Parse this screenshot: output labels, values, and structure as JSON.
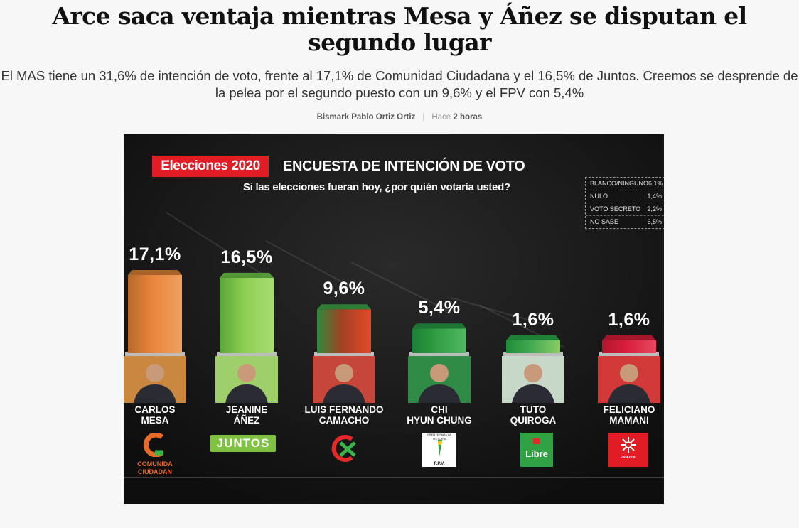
{
  "article": {
    "headline": "Arce saca ventaja mientras Mesa y Áñez se disputan el segundo lugar",
    "lede": "El MAS tiene un 31,6% de intención de voto, frente al 17,1% de Comunidad Ciudadana y el 16,5% de Juntos. Creemos se desprende de la pelea por el segundo puesto con un 9,6% y el FPV con 5,4%",
    "author": "Bismark Pablo Ortiz Ortiz",
    "time_prefix": "Hace",
    "time": "2 horas"
  },
  "chart_data": {
    "type": "bar",
    "tag": "Elecciones 2020",
    "title": "ENCUESTA DE INTENCIÓN DE VOTO",
    "subtitle": "Si las elecciones fueran hoy, ¿por quién votaría usted?",
    "categories": [
      "CARLOS MESA",
      "JEANINE ÁÑEZ",
      "LUIS FERNANDO CAMACHO",
      "CHI HYUN CHUNG",
      "TUTO QUIROGA",
      "FELICIANO MAMANI"
    ],
    "name_lines": [
      [
        "CARLOS",
        "MESA"
      ],
      [
        "JEANINE",
        "ÁÑEZ"
      ],
      [
        "LUIS FERNANDO",
        "CAMACHO"
      ],
      [
        "CHI",
        "HYUN CHUNG"
      ],
      [
        "TUTO",
        "QUIROGA"
      ],
      [
        "FELICIANO",
        "MAMANI"
      ]
    ],
    "values": [
      17.1,
      16.5,
      9.6,
      5.4,
      1.6,
      1.6
    ],
    "value_labels": [
      "17,1%",
      "16,5%",
      "9,6%",
      "5,4%",
      "1,6%",
      "1,6%"
    ],
    "bar_colors": [
      [
        "#b66a2a",
        "#e8843c",
        "#f0a060"
      ],
      [
        "#5aa53a",
        "#8ccf50",
        "#a9dc74"
      ],
      [
        "#2f8a3a",
        "#a04224",
        "#e54a28"
      ],
      [
        "#1d7f35",
        "#2f9e44",
        "#52b861"
      ],
      [
        "#1f8c38",
        "#42aa50",
        "#8acc66"
      ],
      [
        "#b5152e",
        "#d81f3c",
        "#e8485f"
      ]
    ],
    "party_logos": [
      {
        "name": "COMUNIDA CIUDADAN",
        "icon": "comunidad-ciudadana-logo"
      },
      {
        "name": "JUNTOS",
        "icon": "juntos-logo"
      },
      {
        "name": "CREEMOS",
        "icon": "creemos-logo"
      },
      {
        "name": "FPV",
        "icon": "fpv-logo",
        "small_text": "FRENTE PARA LA VICTORIA",
        "abbr": "F.P.V."
      },
      {
        "name": "Libre",
        "icon": "libre-logo"
      },
      {
        "name": "PAN-BOL",
        "icon": "pan-bol-logo"
      }
    ],
    "others": [
      {
        "label": "BLANCO/NINGUNO",
        "value": "6,1%"
      },
      {
        "label": "NULO",
        "value": "1,4%"
      },
      {
        "label": "VOTO SECRETO",
        "value": "2,2%"
      },
      {
        "label": "NO SABE",
        "value": "6,5%"
      }
    ],
    "ylim": [
      0,
      17.1
    ],
    "grid": false,
    "legend": "top-right"
  },
  "colors": {
    "background": "#121212",
    "tag": "#e21c24",
    "page": "#f7f7f7"
  }
}
